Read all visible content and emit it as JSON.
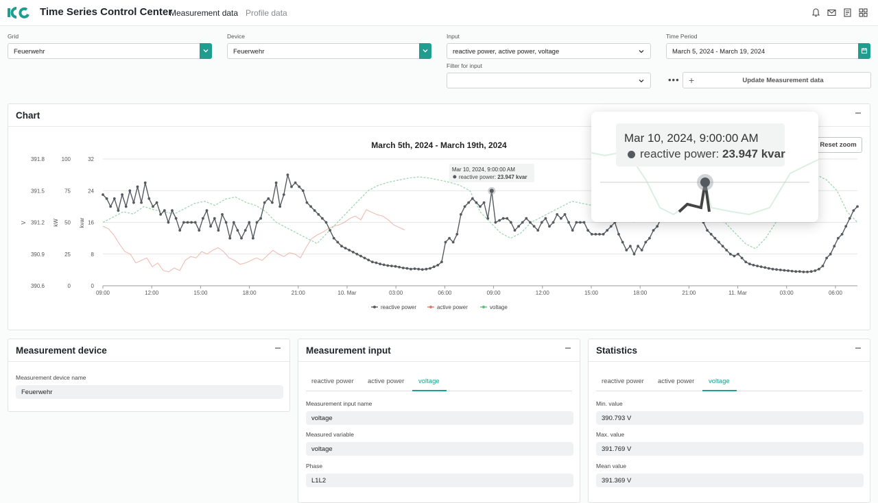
{
  "header": {
    "app_title": "Time Series Control Center",
    "nav_active": "Measurement data",
    "nav_inactive": "Profile data",
    "icons": [
      "bell-icon",
      "mail-icon",
      "document-icon",
      "grid-icon"
    ]
  },
  "filters": {
    "grid_label": "Grid",
    "grid_value": "Feuerwehr",
    "device_label": "Device",
    "device_value": "Feuerwehr",
    "input_label": "Input",
    "input_value": "reactive power, active power, voltage",
    "filter_label": "Filter for input",
    "filter_value": "",
    "period_label": "Time Period",
    "period_value": "March 5, 2024 - March 19, 2024",
    "more": "•••",
    "update_plus": "+",
    "update_label": "Update Measurement data"
  },
  "chart_panel": {
    "title": "Chart",
    "reset_zoom": "Reset zoom",
    "tooltip_time": "Mar 10, 2024, 9:00:00 AM",
    "tooltip_series": "reactive power: ",
    "tooltip_value": "23.947 kvar",
    "zoom_time": "Mar 10, 2024, 9:00:00 AM",
    "zoom_series": "reactive power: ",
    "zoom_value": "23.947 kvar"
  },
  "chart_data": {
    "type": "line",
    "title": "March 5th, 2024 - March 19th, 2024",
    "x_ticks": [
      "09:00",
      "12:00",
      "15:00",
      "18:00",
      "21:00",
      "10. Mar",
      "03:00",
      "06:00",
      "09:00",
      "12:00",
      "15:00",
      "18:00",
      "21:00",
      "11. Mar",
      "03:00",
      "06:00"
    ],
    "y_axes": [
      {
        "label": "V",
        "ticks": [
          "390.6",
          "390.9",
          "391.2",
          "391.5",
          "391.8"
        ]
      },
      {
        "label": "kW",
        "ticks": [
          "0",
          "25",
          "50",
          "75",
          "100"
        ]
      },
      {
        "label": "kvar",
        "ticks": [
          "0",
          "8",
          "16",
          "24",
          "32"
        ]
      }
    ],
    "ylim_kvar": [
      0,
      32
    ],
    "legend": [
      "reactive power",
      "active power",
      "voltage"
    ],
    "legend_position": "bottom",
    "colors": {
      "reactive": "#555a5f",
      "active": "#e8a59a",
      "voltage": "#9fd8b0"
    },
    "series": [
      {
        "name": "reactive power",
        "unit": "kvar",
        "values": [
          23,
          22,
          20,
          22,
          19,
          23,
          20,
          24,
          21,
          25,
          21,
          26,
          22,
          20,
          21,
          18,
          19,
          16,
          19,
          17,
          14,
          16,
          16,
          16,
          16,
          14,
          17,
          19,
          15,
          17,
          14,
          18,
          16,
          12,
          16,
          14,
          12,
          14,
          16,
          12,
          16,
          17,
          21,
          22,
          21,
          26,
          20,
          23,
          28,
          25,
          26,
          25,
          24,
          21,
          20,
          19,
          18,
          17,
          16,
          14,
          12,
          11,
          10,
          9.5,
          9,
          8.5,
          8,
          7.5,
          7,
          6.5,
          6,
          5.8,
          5.5,
          5.3,
          5.1,
          5,
          4.9,
          4.7,
          4.5,
          4.4,
          4.2,
          4.3,
          4.2,
          4.1,
          4.2,
          4.4,
          4.8,
          5.2,
          6,
          11,
          12,
          11,
          13,
          18,
          20,
          21,
          22,
          21,
          20,
          21,
          17,
          23.947,
          16,
          16.5,
          17,
          17,
          16,
          14,
          15,
          16,
          17,
          16,
          15,
          14,
          16,
          17,
          15,
          16,
          18,
          17,
          18,
          16,
          14,
          16,
          16,
          16,
          14,
          13,
          13,
          13,
          13,
          14,
          15,
          16,
          13,
          11,
          9,
          10,
          8,
          10,
          9,
          11,
          12,
          14,
          15,
          17,
          19,
          22,
          24,
          25,
          24,
          25,
          24,
          23,
          20,
          18,
          16,
          14,
          13,
          12,
          11,
          10,
          9,
          8,
          7.5,
          8,
          7,
          6,
          5.5,
          5.2,
          5,
          4.8,
          4.6,
          4.4,
          4.2,
          4.1,
          4,
          3.9,
          3.8,
          3.7,
          3.6,
          3.6,
          3.5,
          3.5,
          3.6,
          3.8,
          4.2,
          5,
          7,
          8,
          10,
          12,
          13,
          15,
          17,
          19,
          20
        ]
      },
      {
        "name": "active power",
        "unit": "kW",
        "values": [
          47,
          45,
          40,
          33,
          27,
          25,
          18,
          20,
          22,
          15,
          18,
          12,
          11,
          14,
          12,
          20,
          23,
          22,
          27,
          25,
          28,
          30,
          27,
          22,
          20,
          17,
          18,
          20,
          22,
          20,
          24,
          28,
          25,
          23,
          26,
          25,
          22,
          30,
          37,
          40,
          42,
          45,
          47,
          48,
          50,
          53,
          55,
          52,
          60,
          58,
          56,
          55,
          52,
          48,
          46,
          44
        ]
      },
      {
        "name": "voltage",
        "unit": "V",
        "values": [
          391.2,
          391.25,
          391.3,
          391.28,
          391.35,
          391.32,
          391.3,
          391.28,
          391.33,
          391.38,
          391.4,
          391.36,
          391.42,
          391.44,
          391.39,
          391.36,
          391.3,
          391.2,
          391.15,
          391.1,
          391.05,
          391.0,
          391.1,
          391.2,
          391.3,
          391.4,
          391.5,
          391.55,
          391.58,
          391.6,
          391.62,
          391.63,
          391.62,
          391.6,
          391.58,
          391.55,
          391.5,
          391.3,
          391.2,
          391.1,
          391.05,
          391.1,
          391.2,
          391.25,
          391.3,
          391.35,
          391.4,
          391.38,
          391.36,
          391.32,
          391.3,
          391.25,
          391.2,
          391.28,
          391.3,
          391.35,
          391.4,
          391.38,
          391.35,
          391.3,
          391.25,
          391.2,
          391.1,
          391.0,
          390.95,
          391.05,
          391.2,
          391.35,
          391.5,
          391.6,
          391.65,
          391.6,
          391.5,
          391.3,
          391.2
        ]
      }
    ]
  },
  "device_panel": {
    "title": "Measurement device",
    "name_label": "Measurement device name",
    "name_value": "Feuerwehr"
  },
  "input_panel": {
    "title": "Measurement input",
    "tabs": [
      "reactive power",
      "active power",
      "voltage"
    ],
    "input_name_label": "Measurement input name",
    "input_name_value": "voltage",
    "variable_label": "Measured variable",
    "variable_value": "voltage",
    "phase_label": "Phase",
    "phase_value": "L1L2"
  },
  "stats_panel": {
    "title": "Statistics",
    "tabs": [
      "reactive power",
      "active power",
      "voltage"
    ],
    "min_label": "Min. value",
    "min_value": "390.793 V",
    "max_label": "Max. value",
    "max_value": "391.769 V",
    "mean_label": "Mean value",
    "mean_value": "391.369 V"
  }
}
